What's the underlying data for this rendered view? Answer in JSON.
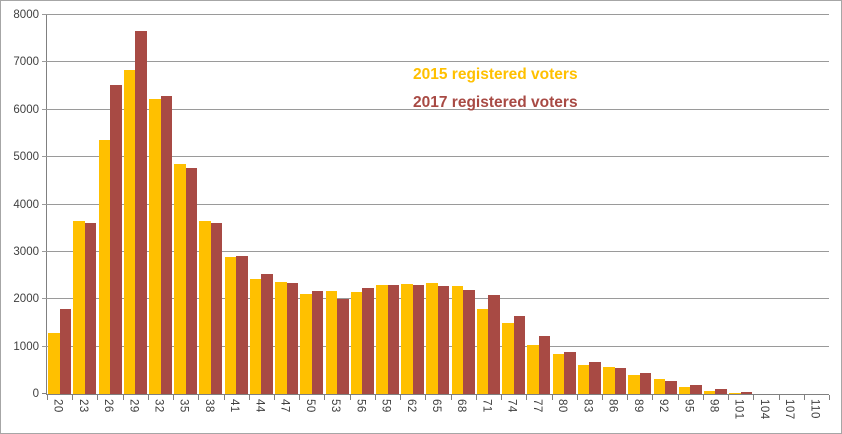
{
  "chart_data": {
    "type": "bar",
    "title": "",
    "xlabel": "",
    "ylabel": "",
    "categories": [
      "20",
      "23",
      "26",
      "29",
      "32",
      "35",
      "38",
      "41",
      "44",
      "47",
      "50",
      "53",
      "56",
      "59",
      "62",
      "65",
      "68",
      "71",
      "74",
      "77",
      "80",
      "83",
      "86",
      "89",
      "92",
      "95",
      "98",
      "101",
      "104",
      "107",
      "110"
    ],
    "series": [
      {
        "name": "2015 registered voters",
        "color": "#FFC000",
        "values": [
          1280,
          3660,
          5360,
          6840,
          6230,
          4850,
          3655,
          2885,
          2420,
          2365,
          2120,
          2170,
          2160,
          2305,
          2330,
          2340,
          2275,
          1795,
          1505,
          1035,
          840,
          620,
          580,
          400,
          310,
          155,
          70,
          25,
          0,
          0,
          0
        ]
      },
      {
        "name": "2017 registered voters",
        "color": "#A84A44",
        "values": [
          1790,
          3620,
          6520,
          7660,
          6290,
          4770,
          3600,
          2915,
          2540,
          2345,
          2175,
          2015,
          2245,
          2295,
          2300,
          2280,
          2200,
          2085,
          1640,
          1230,
          890,
          680,
          550,
          435,
          270,
          190,
          100,
          40,
          0,
          0,
          0
        ]
      }
    ],
    "ylim": [
      0,
      8000
    ],
    "yticks": [
      0,
      1000,
      2000,
      3000,
      4000,
      5000,
      6000,
      7000,
      8000
    ],
    "grid": true,
    "legend_position": "inside-top-center",
    "x_label_rotation_deg": 90
  },
  "legend": {
    "items": [
      {
        "label": "2015 registered voters",
        "color": "#FFC000"
      },
      {
        "label": "2017 registered voters",
        "color": "#A84A44"
      }
    ]
  },
  "colors": {
    "background": "#ffffff",
    "frame_border": "#a6a6a6",
    "gridline": "#9a9a9a",
    "axis_line": "#808080",
    "tick_label_text": "#3f3f3f",
    "series_2015": "#FFC000",
    "series_2017": "#A84A44"
  }
}
